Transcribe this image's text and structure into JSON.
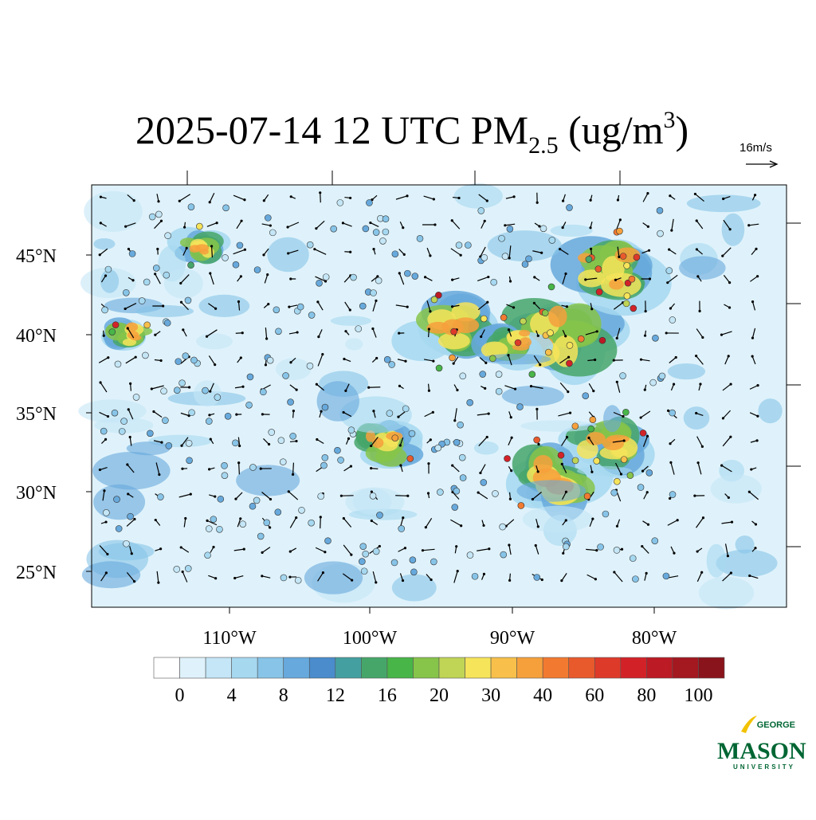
{
  "title": {
    "main": "2025-07-14 12 UTC PM",
    "sub": "2.5",
    "units": " (ug/m",
    "sup": "3",
    "close": ")"
  },
  "vector_ref": "16m/s",
  "lat_labels": [
    "45°N",
    "40°N",
    "35°N",
    "30°N",
    "25°N"
  ],
  "lon_labels": [
    "110°W",
    "100°W",
    "90°W",
    "80°W"
  ],
  "colorbar": {
    "colors": [
      "#ffffff",
      "#dff2fb",
      "#c4e6f6",
      "#a6d8f0",
      "#87c4e8",
      "#67a9dc",
      "#4a8ccc",
      "#44a0a0",
      "#46a66a",
      "#48b548",
      "#86c44a",
      "#c0d456",
      "#f6e45a",
      "#f8c04a",
      "#f6a03c",
      "#f27a30",
      "#e85a2c",
      "#de3a2a",
      "#d22228",
      "#bc1a24",
      "#a41820",
      "#8a141c"
    ],
    "labels": [
      0,
      4,
      8,
      12,
      16,
      20,
      30,
      40,
      60,
      80,
      100
    ]
  },
  "logo": {
    "top": "GEORGE",
    "name": "MASON",
    "bottom": "UNIVERSITY"
  }
}
